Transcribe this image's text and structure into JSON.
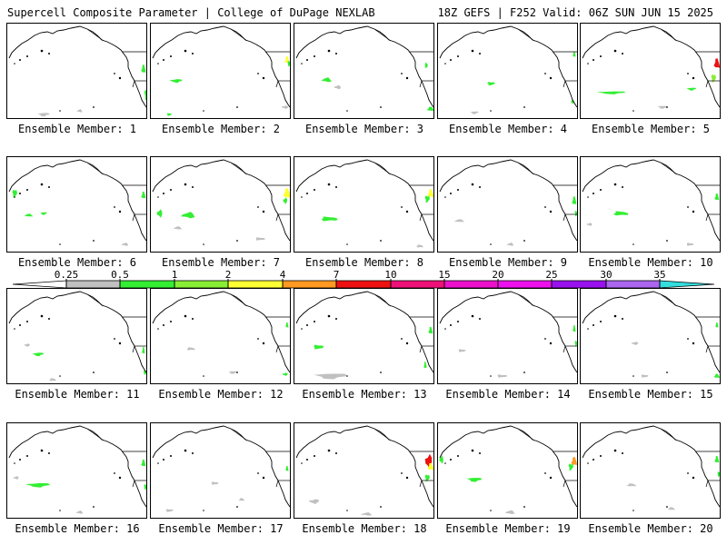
{
  "header": {
    "left": "Supercell Composite Parameter | College of DuPage NEXLAB",
    "right": "18Z GEFS | F252 Valid: 06Z SUN JUN 15 2025"
  },
  "colorbar": {
    "labels": [
      "0.25",
      "0.5",
      "1",
      "2",
      "4",
      "7",
      "10",
      "15",
      "20",
      "25",
      "30",
      "35"
    ],
    "colors": [
      "#ffffff",
      "#c0c0c0",
      "#33ee33",
      "#88ee33",
      "#ffff33",
      "#ff9922",
      "#ee1111",
      "#ee1177",
      "#ee11cc",
      "#ee11ee",
      "#9911ee",
      "#aa66ee",
      "#33dddd"
    ]
  },
  "members": [
    {
      "label": "Ensemble Member: 1"
    },
    {
      "label": "Ensemble Member: 2"
    },
    {
      "label": "Ensemble Member: 3"
    },
    {
      "label": "Ensemble Member: 4"
    },
    {
      "label": "Ensemble Member: 5"
    },
    {
      "label": "Ensemble Member: 6"
    },
    {
      "label": "Ensemble Member: 7"
    },
    {
      "label": "Ensemble Member: 8"
    },
    {
      "label": "Ensemble Member: 9"
    },
    {
      "label": "Ensemble Member: 10"
    },
    {
      "label": "Ensemble Member: 11"
    },
    {
      "label": "Ensemble Member: 12"
    },
    {
      "label": "Ensemble Member: 13"
    },
    {
      "label": "Ensemble Member: 14"
    },
    {
      "label": "Ensemble Member: 15"
    },
    {
      "label": "Ensemble Member: 16"
    },
    {
      "label": "Ensemble Member: 17"
    },
    {
      "label": "Ensemble Member: 18"
    },
    {
      "label": "Ensemble Member: 19"
    },
    {
      "label": "Ensemble Member: 20"
    }
  ]
}
